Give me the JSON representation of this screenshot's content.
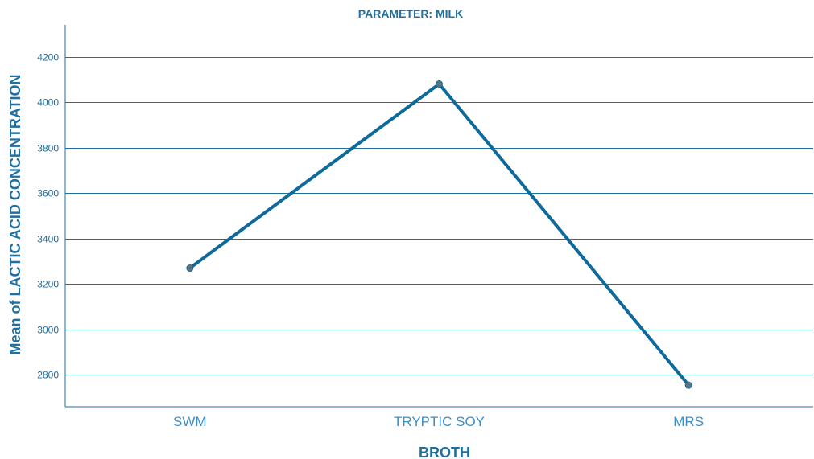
{
  "chart_data": {
    "type": "line",
    "title": "PARAMETER: MILK",
    "xlabel": "BROTH",
    "ylabel": "Mean of LACTIC ACID CONCENTRATION",
    "categories": [
      "SWM",
      "TRYPTIC SOY",
      "MRS"
    ],
    "series": [
      {
        "values": [
          3270,
          4080,
          2755
        ]
      }
    ],
    "ylim": [
      2660,
      4340
    ],
    "yticks": [
      2800,
      3000,
      3200,
      3400,
      3600,
      3800,
      4000,
      4200
    ],
    "grid": "horizontal",
    "colors": {
      "line": "#0f6a9c",
      "marker": "#5f7280",
      "grid": "#1f6fa0",
      "text": "#1f6fa0",
      "category_text": "#3b8fc7"
    }
  }
}
